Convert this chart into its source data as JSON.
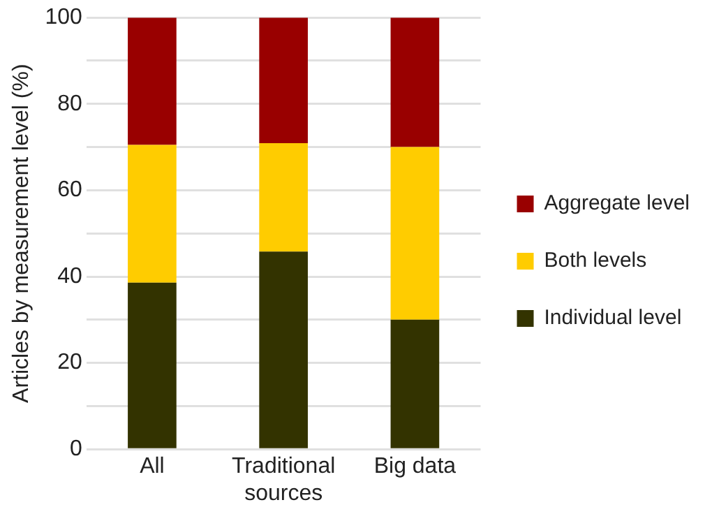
{
  "chart_data": {
    "type": "bar",
    "stacked": true,
    "ylabel": "Articles by measurement level (%)",
    "categories": [
      "All",
      "Traditional sources",
      "Big data"
    ],
    "series": [
      {
        "name": "Individual level",
        "color": "#333300",
        "values": [
          38.6,
          45.8,
          30.0
        ]
      },
      {
        "name": "Both levels",
        "color": "#ffcc00",
        "values": [
          31.9,
          25.1,
          40.0
        ]
      },
      {
        "name": "Aggregate level",
        "color": "#990000",
        "values": [
          29.5,
          29.1,
          30.0
        ]
      }
    ],
    "ylim": [
      0,
      100
    ],
    "yticks": [
      0,
      {
        "value": 10,
        "label": null
      },
      20,
      {
        "value": 30,
        "label": null
      },
      40,
      {
        "value": 50,
        "label": null
      },
      60,
      {
        "value": 70,
        "label": null
      },
      80,
      {
        "value": 90,
        "label": null
      },
      100
    ],
    "grid": "y",
    "legend": "right"
  }
}
